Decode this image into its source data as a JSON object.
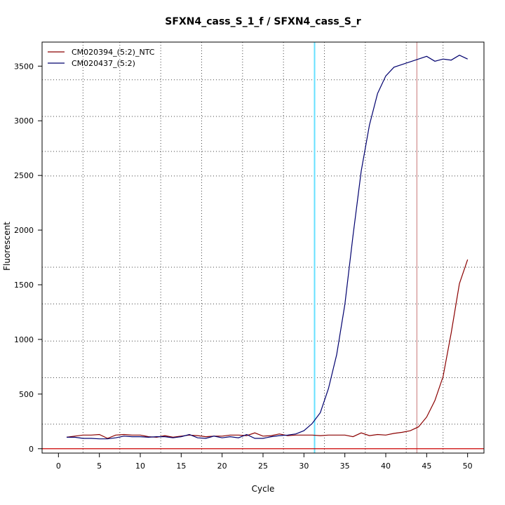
{
  "chart_data": {
    "type": "line",
    "title": "SFXN4_cass_S_1_f / SFXN4_cass_S_r",
    "xlabel": "Cycle",
    "ylabel": "Fluorescent",
    "xlim": [
      -2,
      52
    ],
    "ylim": [
      -40,
      3720
    ],
    "xticks": [
      0,
      5,
      10,
      15,
      20,
      25,
      30,
      35,
      40,
      45,
      50
    ],
    "yticks": [
      0,
      500,
      1000,
      1500,
      2000,
      2500,
      3000,
      3500
    ],
    "grid_x": [
      3,
      7.5,
      12.5,
      17.5,
      22.5,
      27.5,
      32.5,
      37.5,
      42.5,
      47
    ],
    "grid_y": [
      225,
      650,
      985,
      1325,
      1660,
      2495,
      2720,
      3040,
      3375
    ],
    "legend_position": "top-left",
    "threshold_line_y": 0,
    "threshold_color": "#cc0000",
    "series": [
      {
        "name": "CM020394_(5:2)_NTC",
        "color": "#8b0000",
        "x": [
          1,
          2,
          3,
          4,
          5,
          6,
          7,
          8,
          9,
          10,
          11,
          12,
          13,
          14,
          15,
          16,
          17,
          18,
          19,
          20,
          21,
          22,
          23,
          24,
          25,
          26,
          27,
          28,
          29,
          30,
          31,
          32,
          33,
          34,
          35,
          36,
          37,
          38,
          39,
          40,
          41,
          42,
          43,
          44,
          45,
          46,
          47,
          48,
          49,
          50
        ],
        "values": [
          105,
          115,
          125,
          125,
          130,
          95,
          125,
          130,
          125,
          125,
          110,
          105,
          120,
          105,
          115,
          125,
          120,
          110,
          115,
          115,
          125,
          125,
          120,
          145,
          115,
          120,
          135,
          120,
          125,
          125,
          125,
          120,
          125,
          125,
          125,
          110,
          145,
          120,
          130,
          125,
          140,
          150,
          165,
          200,
          290,
          440,
          660,
          1060,
          1510,
          1730
        ]
      },
      {
        "name": "CM020437_(5:2)",
        "color": "#00006e",
        "x": [
          1,
          2,
          3,
          4,
          5,
          6,
          7,
          8,
          9,
          10,
          11,
          12,
          13,
          14,
          15,
          16,
          17,
          18,
          19,
          20,
          21,
          22,
          23,
          24,
          25,
          26,
          27,
          28,
          29,
          30,
          31,
          32,
          33,
          34,
          35,
          36,
          37,
          38,
          39,
          40,
          41,
          42,
          43,
          44,
          45,
          46,
          47,
          48,
          49,
          50
        ],
        "values": [
          105,
          105,
          95,
          95,
          90,
          90,
          100,
          115,
          110,
          110,
          105,
          110,
          110,
          100,
          110,
          130,
          100,
          95,
          115,
          100,
          110,
          100,
          130,
          95,
          95,
          110,
          120,
          125,
          135,
          165,
          230,
          330,
          550,
          860,
          1320,
          1950,
          2540,
          2960,
          3250,
          3410,
          3490,
          3515,
          3540,
          3565,
          3590,
          3545,
          3565,
          3555,
          3600,
          3565
        ]
      }
    ],
    "vertical_markers": [
      {
        "x": 31.3,
        "color": "#66e0ff"
      },
      {
        "x": 43.8,
        "color": "#c87878"
      }
    ]
  }
}
